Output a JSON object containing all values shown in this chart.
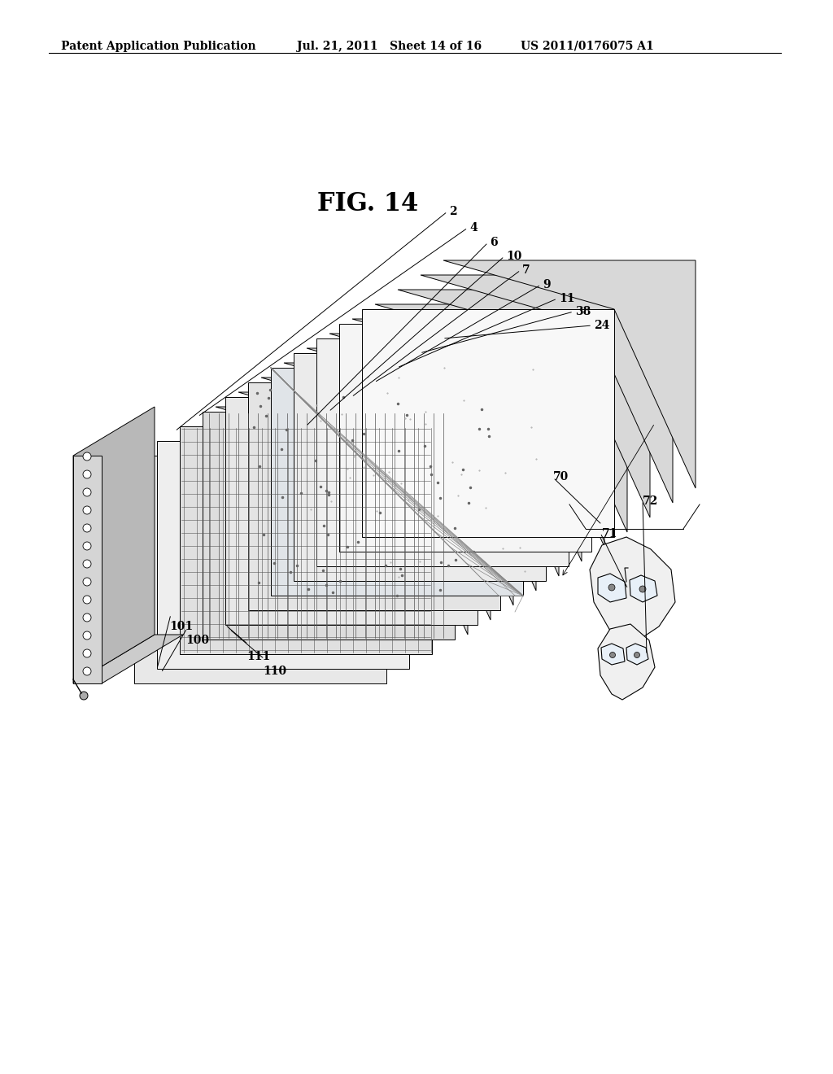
{
  "title": "FIG. 14",
  "header_left": "Patent Application Publication",
  "header_mid": "Jul. 21, 2011   Sheet 14 of 16",
  "header_right": "US 2011/0176075 A1",
  "bg_color": "#ffffff",
  "line_color": "#000000",
  "layer_labels": [
    "2",
    "4",
    "6",
    "10",
    "7",
    "9",
    "11",
    "38",
    "24",
    "100",
    "101",
    "110",
    "111"
  ],
  "viewer_labels": [
    "70",
    "71",
    "72"
  ]
}
